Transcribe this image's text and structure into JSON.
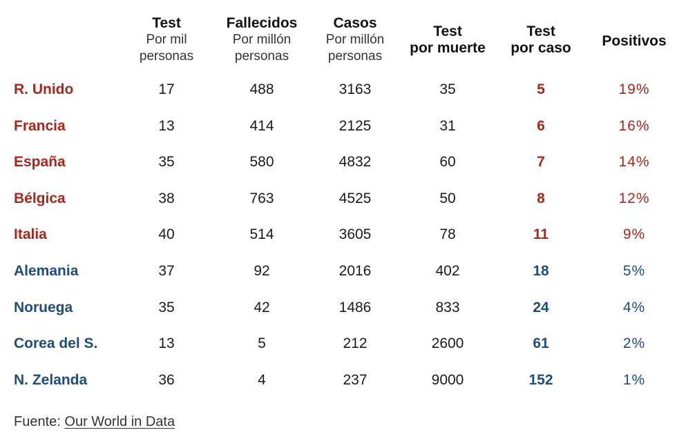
{
  "colors": {
    "red": "#a8261c",
    "blue": "#1e4c7e"
  },
  "header": {
    "test": {
      "title": "Test",
      "sub1": "Por mil",
      "sub2": "personas"
    },
    "fallecidos": {
      "title": "Fallecidos",
      "sub1": "Por millón",
      "sub2": "personas"
    },
    "casos": {
      "title": "Casos",
      "sub1": "Por millón",
      "sub2": "personas"
    },
    "test_muerte": {
      "line1": "Test",
      "line2": "por muerte"
    },
    "test_caso": {
      "line1": "Test",
      "line2": "por caso"
    },
    "positivos": {
      "title": "Positivos"
    }
  },
  "rows": [
    {
      "country": "R. Unido",
      "test": "17",
      "fallecidos": "488",
      "casos": "3163",
      "test_muerte": "35",
      "test_caso": "5",
      "positivos": "19%",
      "color": "red"
    },
    {
      "country": "Francia",
      "test": "13",
      "fallecidos": "414",
      "casos": "2125",
      "test_muerte": "31",
      "test_caso": "6",
      "positivos": "16%",
      "color": "red"
    },
    {
      "country": "España",
      "test": "35",
      "fallecidos": "580",
      "casos": "4832",
      "test_muerte": "60",
      "test_caso": "7",
      "positivos": "14%",
      "color": "red"
    },
    {
      "country": "Bélgica",
      "test": "38",
      "fallecidos": "763",
      "casos": "4525",
      "test_muerte": "50",
      "test_caso": "8",
      "positivos": "12%",
      "color": "red"
    },
    {
      "country": "Italia",
      "test": "40",
      "fallecidos": "514",
      "casos": "3605",
      "test_muerte": "78",
      "test_caso": "11",
      "positivos": "9%",
      "color": "red"
    },
    {
      "country": "Alemania",
      "test": "37",
      "fallecidos": "92",
      "casos": "2016",
      "test_muerte": "402",
      "test_caso": "18",
      "positivos": "5%",
      "color": "blue"
    },
    {
      "country": "Noruega",
      "test": "35",
      "fallecidos": "42",
      "casos": "1486",
      "test_muerte": "833",
      "test_caso": "24",
      "positivos": "4%",
      "color": "blue"
    },
    {
      "country": "Corea del S.",
      "test": "13",
      "fallecidos": "5",
      "casos": "212",
      "test_muerte": "2600",
      "test_caso": "61",
      "positivos": "2%",
      "color": "blue"
    },
    {
      "country": "N. Zelanda",
      "test": "36",
      "fallecidos": "4",
      "casos": "237",
      "test_muerte": "9000",
      "test_caso": "152",
      "positivos": "1%",
      "color": "blue"
    }
  ],
  "footer": {
    "prefix": "Fuente: ",
    "link": "Our World in Data"
  }
}
